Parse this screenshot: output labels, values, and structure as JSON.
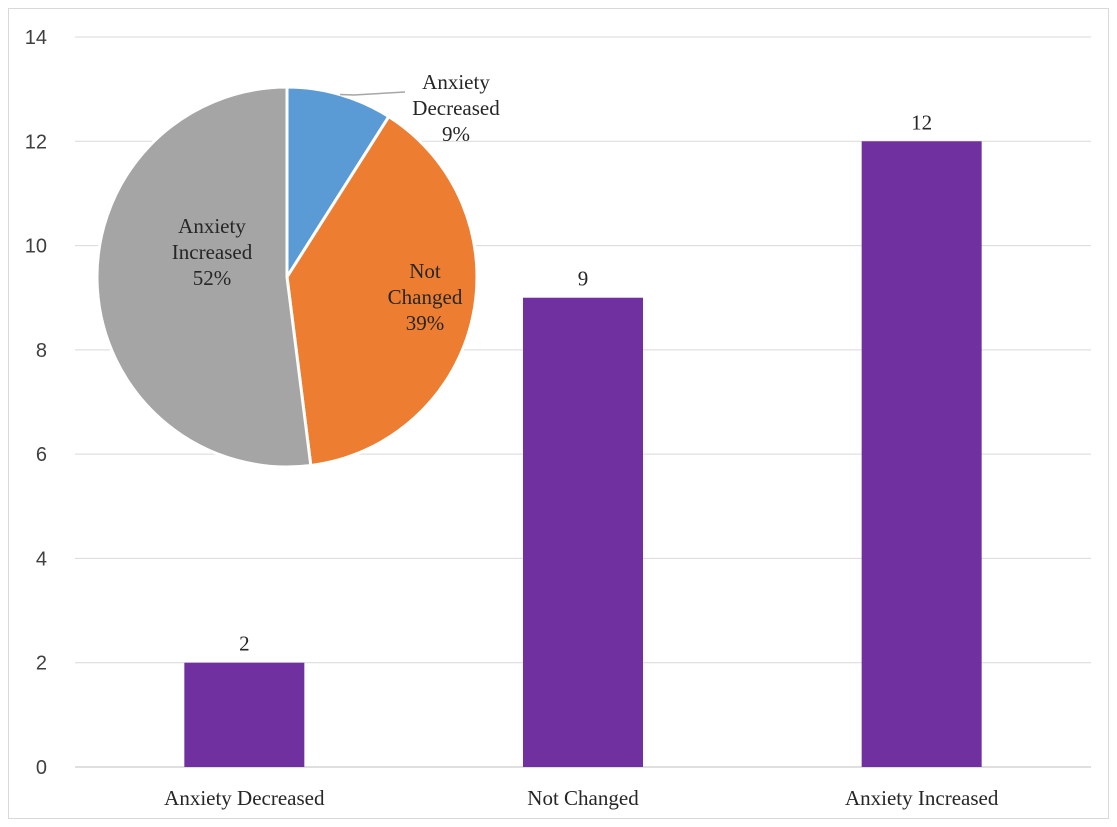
{
  "chart_data": [
    {
      "type": "bar",
      "title": "",
      "xlabel": "",
      "ylabel": "",
      "categories": [
        "Anxiety Decreased",
        "Not Changed",
        "Anxiety Increased"
      ],
      "values": [
        2,
        9,
        12
      ],
      "data_labels": [
        "2",
        "9",
        "12"
      ],
      "ylim": [
        0,
        14
      ],
      "yticks": [
        0,
        2,
        4,
        6,
        8,
        10,
        12,
        14
      ],
      "ytick_labels": [
        "0",
        "2",
        "4",
        "6",
        "8",
        "10",
        "12",
        "14"
      ],
      "grid": true,
      "bar_color": "#7030a0"
    },
    {
      "type": "pie",
      "title": "",
      "slices": [
        {
          "label_lines": [
            "Anxiety",
            "Decreased",
            "9%"
          ],
          "value": 9,
          "color": "#5b9bd5"
        },
        {
          "label_lines": [
            "Not",
            "Changed",
            "39%"
          ],
          "value": 39,
          "color": "#ed7d31"
        },
        {
          "label_lines": [
            "Anxiety",
            "Increased",
            "52%"
          ],
          "value": 52,
          "color": "#a5a5a5"
        }
      ]
    }
  ]
}
